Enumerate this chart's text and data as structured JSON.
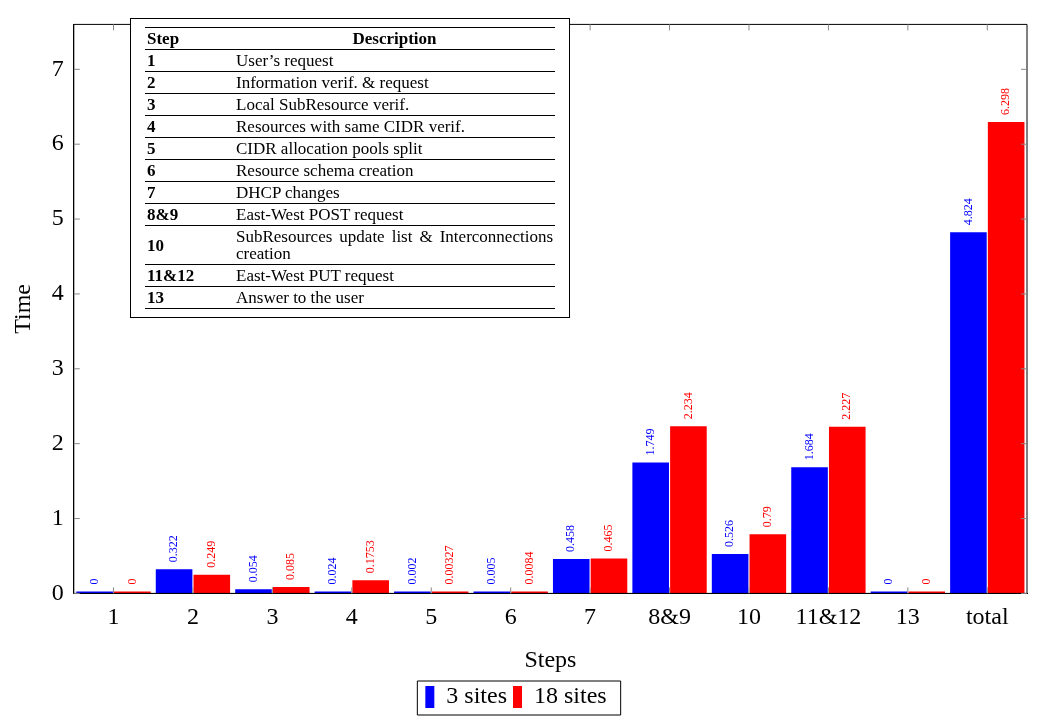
{
  "chart_data": {
    "type": "bar",
    "xlabel": "Steps",
    "ylabel": "Time",
    "categories": [
      "1",
      "2",
      "3",
      "4",
      "5",
      "6",
      "7",
      "8&9",
      "10",
      "11&12",
      "13",
      "total"
    ],
    "series": [
      {
        "name": "3 sites",
        "color": "#0000ff",
        "values": [
          0,
          0.322,
          0.054,
          0.024,
          0.002,
          0.005,
          0.458,
          1.749,
          0.526,
          1.684,
          0,
          4.824
        ]
      },
      {
        "name": "18 sites",
        "color": "#ff0000",
        "values": [
          0,
          0.249,
          0.085,
          0.1753,
          0.00327,
          0.0084,
          0.465,
          2.234,
          0.79,
          2.227,
          0,
          6.298
        ]
      }
    ],
    "ylim": [
      0,
      7.6
    ],
    "yticks": [
      0,
      1,
      2,
      3,
      4,
      5,
      6,
      7
    ],
    "grid": false,
    "legend": "bottom",
    "data_labels": true,
    "annotations": [
      "Step",
      "Description",
      "1",
      "User’s request",
      "2",
      "Information verif. & request",
      "3",
      "Local SubResource verif.",
      "4",
      "Resources with same CIDR verif.",
      "5",
      "CIDR allocation pools split",
      "6",
      "Resource schema creation",
      "7",
      "DHCP changes",
      "8&9",
      "East-West POST request",
      "10",
      "SubResources update list & Interconnections creation",
      "11&12",
      "East-West PUT request",
      "13",
      "Answer to the user"
    ]
  }
}
